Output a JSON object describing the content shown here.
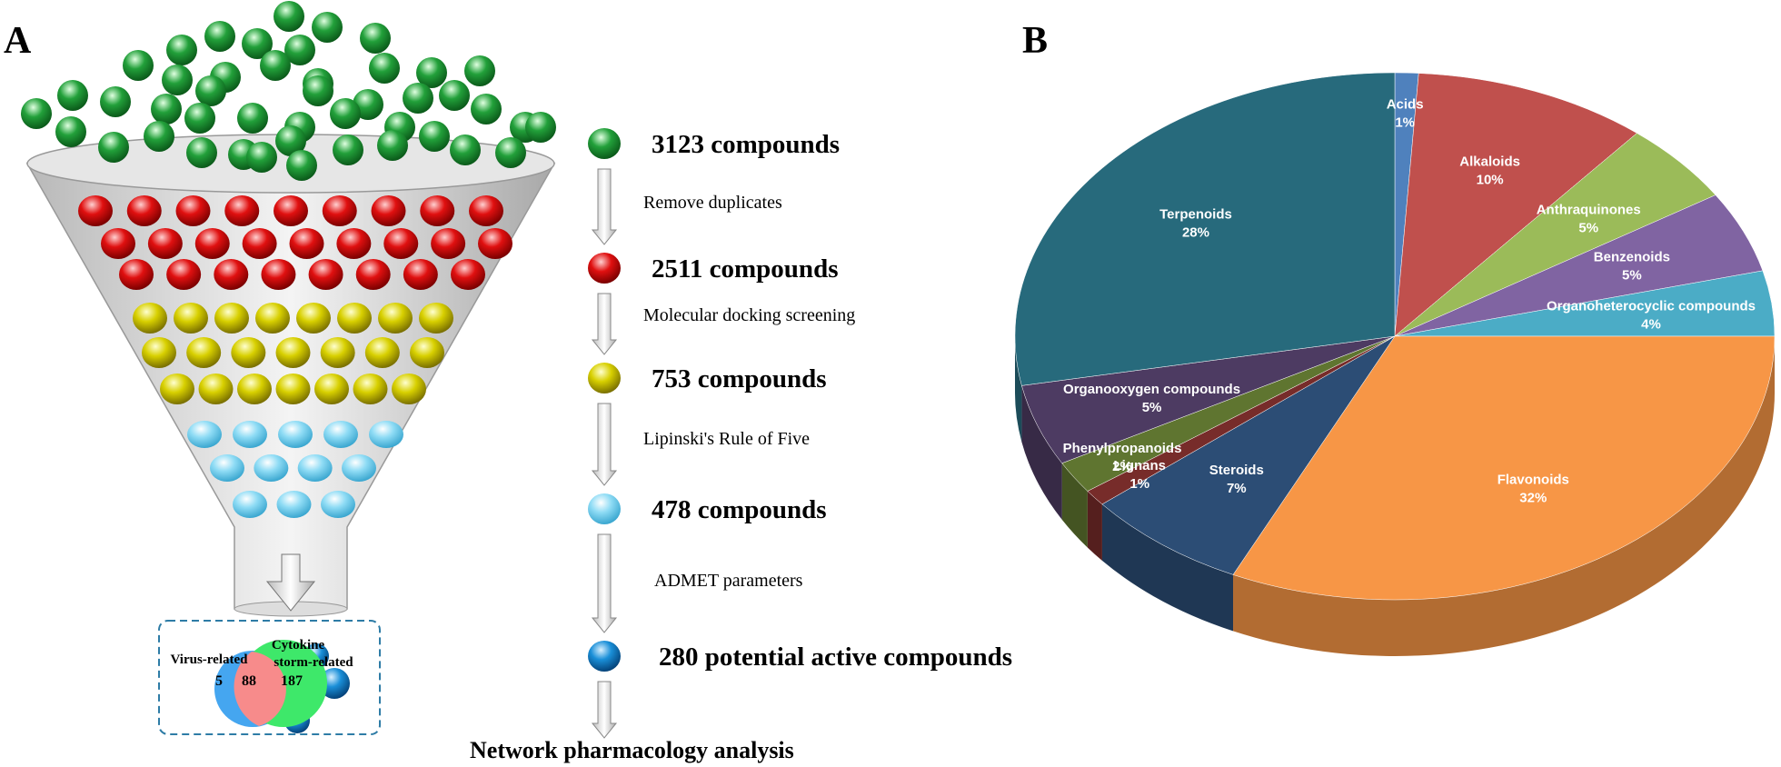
{
  "panel_a": {
    "label": "A",
    "steps": [
      {
        "count": "3123 compounds",
        "process": "Remove duplicates"
      },
      {
        "count": "2511 compounds",
        "process": "Molecular docking screening"
      },
      {
        "count": "753 compounds",
        "process": "Lipinski's Rule of Five"
      },
      {
        "count": "478 compounds",
        "process": "ADMET parameters"
      },
      {
        "count": "280 potential active compounds",
        "process": null
      }
    ],
    "final": "Network pharmacology analysis",
    "venn": {
      "left": "Virus-related",
      "right_lines": [
        "Cytokine",
        "storm-related"
      ],
      "left_only": 5,
      "overlap": 88,
      "right_only": 187
    }
  },
  "chart_data": {
    "type": "pie",
    "panel_label": "B",
    "categories": [
      "Acids",
      "Alkaloids",
      "Anthraquinones",
      "Benzenoids",
      "Organoheterocyclic compounds",
      "Flavonoids",
      "Steroids",
      "Lignans",
      "Phenylpropanoids",
      "Organooxygen compounds",
      "Terpenoids"
    ],
    "values": [
      1,
      10,
      5,
      5,
      4,
      32,
      7,
      1,
      2,
      5,
      28
    ],
    "value_labels": [
      "1%",
      "10%",
      "5%",
      "5%",
      "4%",
      "32%",
      "7%",
      "1%",
      "2%",
      "5%",
      "28%"
    ],
    "colors": [
      "#4f81bd",
      "#c0504d",
      "#9bbb59",
      "#8064a2",
      "#4bacc6",
      "#f79646",
      "#2c4d75",
      "#772c2a",
      "#5f7530",
      "#4d3b62",
      "#276a7c"
    ]
  }
}
